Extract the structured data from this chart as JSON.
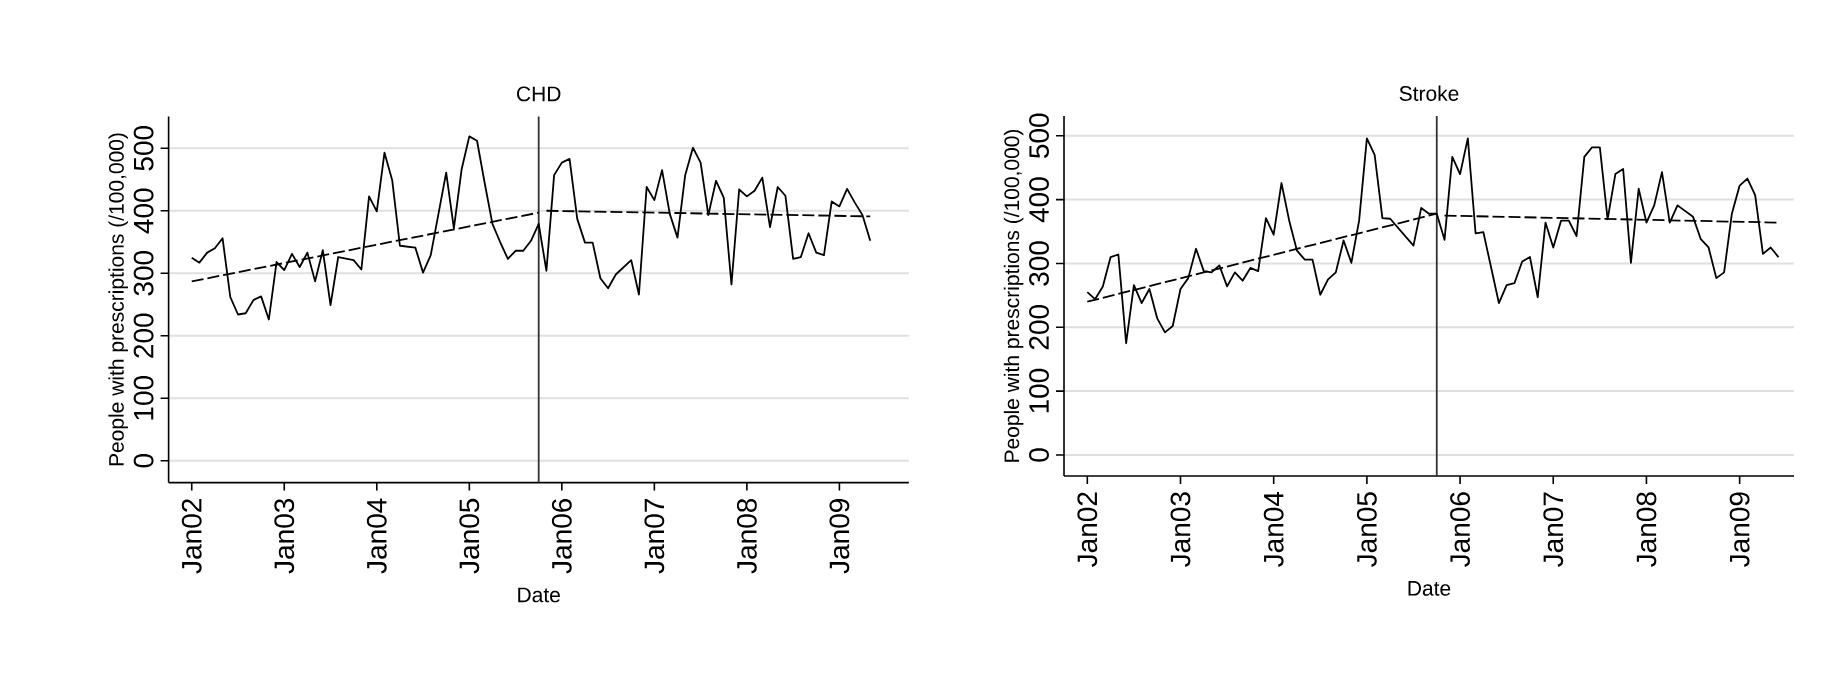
{
  "chart_data": [
    {
      "type": "line",
      "title": "CHD",
      "xlabel": "Date",
      "ylabel": "People with prescriptions (/100,000)",
      "grid": "y",
      "xlim": [
        "2001-10",
        "2009-10"
      ],
      "ylim": [
        -35,
        551
      ],
      "xticks": [
        {
          "value": "2002-01",
          "label": "Jan02"
        },
        {
          "value": "2003-01",
          "label": "Jan03"
        },
        {
          "value": "2004-01",
          "label": "Jan04"
        },
        {
          "value": "2005-01",
          "label": "Jan05"
        },
        {
          "value": "2006-01",
          "label": "Jan06"
        },
        {
          "value": "2007-01",
          "label": "Jan07"
        },
        {
          "value": "2008-01",
          "label": "Jan08"
        },
        {
          "value": "2009-01",
          "label": "Jan09"
        }
      ],
      "yticks": [
        0,
        100,
        200,
        300,
        400,
        500
      ],
      "ref_lines": [
        {
          "axis": "x",
          "value": "2005-10",
          "color": "#333333"
        }
      ],
      "series": [
        {
          "color": "#000000",
          "line_style": "solid",
          "x": [
            "2002-01",
            "2002-02",
            "2002-03",
            "2002-04",
            "2002-05",
            "2002-06",
            "2002-07",
            "2002-08",
            "2002-09",
            "2002-10",
            "2002-11",
            "2002-12",
            "2003-01",
            "2003-02",
            "2003-03",
            "2003-04",
            "2003-05",
            "2003-06",
            "2003-07",
            "2003-08",
            "2003-10",
            "2003-11",
            "2003-12",
            "2004-01",
            "2004-02",
            "2004-03",
            "2004-04",
            "2004-06",
            "2004-07",
            "2004-08",
            "2004-10",
            "2004-11",
            "2004-12",
            "2005-01",
            "2005-02",
            "2005-03",
            "2005-04",
            "2005-05",
            "2005-06",
            "2005-07",
            "2005-08",
            "2005-09",
            "2005-10",
            "2005-11",
            "2005-12",
            "2006-01",
            "2006-02",
            "2006-03",
            "2006-04",
            "2006-05",
            "2006-06",
            "2006-07",
            "2006-08",
            "2006-10",
            "2006-11",
            "2006-12",
            "2007-01",
            "2007-02",
            "2007-03",
            "2007-04",
            "2007-05",
            "2007-06",
            "2007-07",
            "2007-08",
            "2007-09",
            "2007-10",
            "2007-11",
            "2007-12",
            "2008-01",
            "2008-02",
            "2008-03",
            "2008-04",
            "2008-05",
            "2008-06",
            "2008-07",
            "2008-08",
            "2008-09",
            "2008-10",
            "2008-11",
            "2008-12",
            "2009-01",
            "2009-02",
            "2009-03",
            "2009-04",
            "2009-05"
          ],
          "values": [
            325,
            317,
            333,
            340,
            356,
            262,
            234,
            236,
            257,
            263,
            226,
            318,
            305,
            331,
            310,
            333,
            287,
            337,
            249,
            326,
            321,
            306,
            423,
            399,
            493,
            449,
            344,
            341,
            301,
            329,
            461,
            372,
            466,
            519,
            512,
            444,
            379,
            350,
            323,
            336,
            336,
            352,
            379,
            304,
            457,
            477,
            483,
            387,
            349,
            349,
            292,
            276,
            298,
            321,
            266,
            438,
            417,
            465,
            395,
            357,
            457,
            501,
            477,
            393,
            448,
            421,
            282,
            434,
            423,
            432,
            453,
            374,
            438,
            424,
            323,
            326,
            364,
            333,
            329,
            415,
            407,
            435,
            413,
            393,
            352
          ]
        },
        {
          "type": "line",
          "color": "#000000",
          "line_style": "dashed",
          "x": [
            "2002-01",
            "2005-10"
          ],
          "values": [
            287,
            397
          ]
        },
        {
          "type": "line",
          "color": "#000000",
          "line_style": "dashed",
          "x": [
            "2005-11",
            "2009-05"
          ],
          "values": [
            400,
            391
          ]
        }
      ]
    },
    {
      "type": "line",
      "title": "Stroke",
      "xlabel": "Date",
      "ylabel": "People with prescriptions (/100,000)",
      "grid": "y",
      "xlim": [
        "2001-10",
        "2009-08"
      ],
      "ylim": [
        -33,
        531
      ],
      "xticks": [
        {
          "value": "2002-01",
          "label": "Jan02"
        },
        {
          "value": "2003-01",
          "label": "Jan03"
        },
        {
          "value": "2004-01",
          "label": "Jan04"
        },
        {
          "value": "2005-01",
          "label": "Jan05"
        },
        {
          "value": "2006-01",
          "label": "Jan06"
        },
        {
          "value": "2007-01",
          "label": "Jan07"
        },
        {
          "value": "2008-01",
          "label": "Jan08"
        },
        {
          "value": "2009-01",
          "label": "Jan09"
        }
      ],
      "yticks": [
        0,
        100,
        200,
        300,
        400,
        500
      ],
      "ref_lines": [
        {
          "axis": "x",
          "value": "2005-10",
          "color": "#333333"
        }
      ],
      "series": [
        {
          "color": "#000000",
          "line_style": "solid",
          "x": [
            "2002-01",
            "2002-02",
            "2002-03",
            "2002-04",
            "2002-05",
            "2002-06",
            "2002-07",
            "2002-08",
            "2002-09",
            "2002-10",
            "2002-11",
            "2002-12",
            "2003-01",
            "2003-02",
            "2003-03",
            "2003-04",
            "2003-05",
            "2003-06",
            "2003-07",
            "2003-08",
            "2003-09",
            "2003-10",
            "2003-11",
            "2003-12",
            "2004-01",
            "2004-02",
            "2004-03",
            "2004-04",
            "2004-05",
            "2004-06",
            "2004-07",
            "2004-08",
            "2004-09",
            "2004-10",
            "2004-11",
            "2004-12",
            "2005-01",
            "2005-02",
            "2005-03",
            "2005-04",
            "2005-07",
            "2005-08",
            "2005-09",
            "2005-10",
            "2005-11",
            "2005-12",
            "2006-01",
            "2006-02",
            "2006-03",
            "2006-04",
            "2006-06",
            "2006-07",
            "2006-08",
            "2006-09",
            "2006-10",
            "2006-11",
            "2006-12",
            "2007-01",
            "2007-02",
            "2007-03",
            "2007-04",
            "2007-05",
            "2007-06",
            "2007-07",
            "2007-08",
            "2007-09",
            "2007-10",
            "2007-11",
            "2007-12",
            "2008-01",
            "2008-02",
            "2008-03",
            "2008-04",
            "2008-05",
            "2008-07",
            "2008-08",
            "2008-09",
            "2008-10",
            "2008-11",
            "2008-12",
            "2009-01",
            "2009-02",
            "2009-03",
            "2009-04",
            "2009-05",
            "2009-06"
          ],
          "values": [
            255,
            244,
            264,
            310,
            314,
            175,
            266,
            238,
            260,
            214,
            192,
            202,
            260,
            277,
            323,
            288,
            286,
            297,
            264,
            286,
            273,
            293,
            288,
            371,
            345,
            426,
            367,
            320,
            306,
            306,
            251,
            275,
            286,
            336,
            301,
            367,
            496,
            470,
            371,
            370,
            328,
            387,
            378,
            378,
            337,
            467,
            440,
            496,
            347,
            349,
            238,
            266,
            269,
            303,
            310,
            247,
            364,
            325,
            367,
            367,
            343,
            467,
            482,
            482,
            369,
            440,
            448,
            301,
            417,
            364,
            391,
            443,
            364,
            391,
            373,
            338,
            325,
            277,
            286,
            378,
            422,
            433,
            407,
            315,
            325,
            310
          ]
        },
        {
          "type": "line",
          "color": "#000000",
          "line_style": "dashed",
          "x": [
            "2002-01",
            "2005-10"
          ],
          "values": [
            240,
            378
          ]
        },
        {
          "type": "line",
          "color": "#000000",
          "line_style": "dashed",
          "x": [
            "2005-11",
            "2009-06"
          ],
          "values": [
            375,
            364
          ]
        }
      ]
    }
  ]
}
